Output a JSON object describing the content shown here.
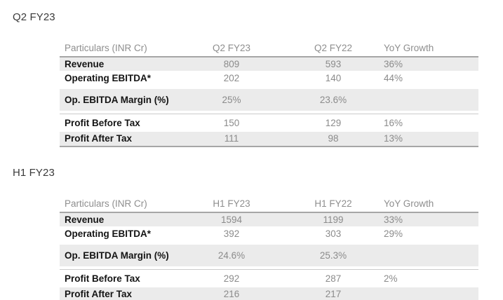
{
  "colors": {
    "row_shade": "#ebebeb",
    "strong_border": "#a6a6a6",
    "hairline": "#cbcbcb",
    "header_text": "#8e8e8e",
    "value_text": "#8b8b8b",
    "label_text": "#141414",
    "title_text": "#3a3a3a"
  },
  "sections": [
    {
      "title": "Q2 FY23",
      "table": {
        "headers": [
          "Particulars (INR Cr)",
          "Q2 FY23",
          "Q2 FY22",
          "YoY Growth"
        ],
        "rows": [
          {
            "label": "Revenue",
            "v1": "809",
            "v2": "593",
            "yoy": "36%"
          },
          {
            "label": "Operating EBITDA*",
            "v1": "202",
            "v2": "140",
            "yoy": "44%"
          },
          {
            "label": "Op. EBITDA Margin (%)",
            "v1": "25%",
            "v2": "23.6%",
            "yoy": ""
          },
          {
            "label": "Profit Before Tax",
            "v1": "150",
            "v2": "129",
            "yoy": "16%"
          },
          {
            "label": "Profit After Tax",
            "v1": "111",
            "v2": "98",
            "yoy": "13%"
          }
        ]
      }
    },
    {
      "title": "H1 FY23",
      "table": {
        "headers": [
          "Particulars (INR Cr)",
          "H1 FY23",
          "H1 FY22",
          "YoY Growth"
        ],
        "rows": [
          {
            "label": "Revenue",
            "v1": "1594",
            "v2": "1199",
            "yoy": "33%"
          },
          {
            "label": "Operating EBITDA*",
            "v1": "392",
            "v2": "303",
            "yoy": "29%"
          },
          {
            "label": "Op. EBITDA Margin (%)",
            "v1": "24.6%",
            "v2": "25.3%",
            "yoy": ""
          },
          {
            "label": "Profit Before Tax",
            "v1": "292",
            "v2": "287",
            "yoy": "2%"
          },
          {
            "label": "Profit After Tax",
            "v1": "216",
            "v2": "217",
            "yoy": ""
          }
        ]
      }
    }
  ]
}
